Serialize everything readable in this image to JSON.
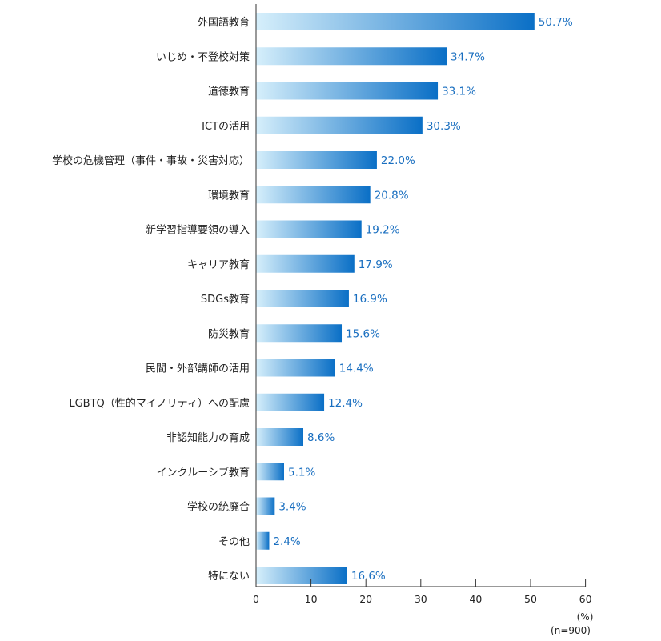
{
  "chart_data": {
    "type": "bar",
    "orientation": "horizontal",
    "title": "",
    "xlabel": "(%)",
    "ylabel": "",
    "sample_note": "(n=900)",
    "xlim": [
      0,
      60
    ],
    "xticks": [
      0,
      10,
      20,
      30,
      40,
      50,
      60
    ],
    "grid": false,
    "categories": [
      "外国語教育",
      "いじめ・不登校対策",
      "道徳教育",
      "ICTの活用",
      "学校の危機管理（事件・事故・災害対応）",
      "環境教育",
      "新学習指導要領の導入",
      "キャリア教育",
      "SDGs教育",
      "防災教育",
      "民間・外部講師の活用",
      "LGBTQ（性的マイノリティ）への配慮",
      "非認知能力の育成",
      "インクルーシブ教育",
      "学校の統廃合",
      "その他",
      "特にない"
    ],
    "values": [
      50.7,
      34.7,
      33.1,
      30.3,
      22.0,
      20.8,
      19.2,
      17.9,
      16.9,
      15.6,
      14.4,
      12.4,
      8.6,
      5.1,
      3.4,
      2.4,
      16.6
    ],
    "value_labels": [
      "50.7%",
      "34.7%",
      "33.1%",
      "30.3%",
      "22.0%",
      "20.8%",
      "19.2%",
      "17.9%",
      "16.9%",
      "15.6%",
      "14.4%",
      "12.4%",
      "8.6%",
      "5.1%",
      "3.4%",
      "2.4%",
      "16.6%"
    ]
  },
  "colors": {
    "bar_start": "#d6effb",
    "bar_end": "#0a6fc6",
    "value_text": "#1a6fc0",
    "axis": "#333333"
  }
}
